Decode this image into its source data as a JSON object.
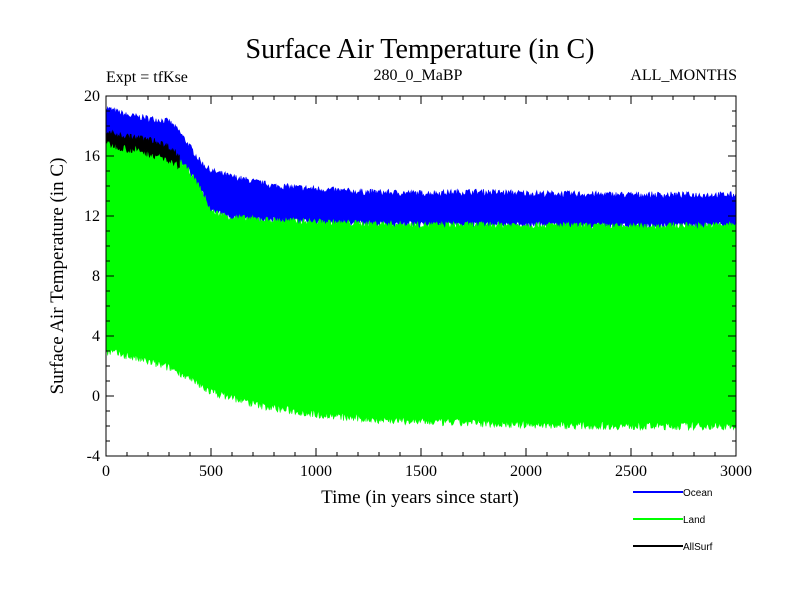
{
  "chart_data": {
    "type": "line",
    "title": "Surface Air Temperature (in C)",
    "subtitle_left": "Expt = tfKse",
    "subtitle_center": "280_0_MaBP",
    "subtitle_right": "ALL_MONTHS",
    "xlabel": "Time (in years since start)",
    "ylabel": "Surface Air Temperature (in C)",
    "xlim": [
      0,
      3000
    ],
    "ylim": [
      -4,
      20
    ],
    "x_ticks": [
      "0",
      "500",
      "1000",
      "1500",
      "2000",
      "2500",
      "3000"
    ],
    "x_tick_values": [
      0,
      500,
      1000,
      1500,
      2000,
      2500,
      3000
    ],
    "y_ticks": [
      "-4",
      "0",
      "4",
      "8",
      "12",
      "16",
      "20"
    ],
    "y_tick_values": [
      -4,
      0,
      4,
      8,
      12,
      16,
      20
    ],
    "series": [
      {
        "name": "Ocean",
        "color": "#0000ff",
        "x": [
          0,
          100,
          200,
          300,
          350,
          400,
          450,
          500,
          600,
          700,
          800,
          1000,
          1200,
          1500,
          1750,
          2000,
          2500,
          3000
        ],
        "upper": [
          19.2,
          18.7,
          18.5,
          18.3,
          17.6,
          16.6,
          15.6,
          15.0,
          14.6,
          14.3,
          14.0,
          13.8,
          13.6,
          13.5,
          13.6,
          13.5,
          13.4,
          13.4
        ],
        "lower": [
          17.2,
          17.0,
          16.7,
          16.2,
          15.7,
          14.9,
          13.8,
          12.3,
          11.9,
          11.8,
          11.7,
          11.6,
          11.5,
          11.4,
          11.4,
          11.4,
          11.3,
          11.4
        ]
      },
      {
        "name": "Land",
        "color": "#00ff00",
        "x": [
          0,
          100,
          200,
          300,
          350,
          400,
          450,
          500,
          600,
          700,
          800,
          1000,
          1200,
          1500,
          1750,
          2000,
          2500,
          3000
        ],
        "upper": [
          17.2,
          17.0,
          16.7,
          16.2,
          15.7,
          14.9,
          13.8,
          12.3,
          11.9,
          11.8,
          11.7,
          11.6,
          11.5,
          11.4,
          11.4,
          11.4,
          11.3,
          11.4
        ],
        "lower": [
          3.0,
          2.7,
          2.3,
          1.9,
          1.6,
          1.1,
          0.7,
          0.3,
          -0.1,
          -0.5,
          -0.8,
          -1.2,
          -1.5,
          -1.7,
          -1.8,
          -1.9,
          -2.0,
          -2.0
        ]
      },
      {
        "name": "AllSurf",
        "color": "#000000",
        "x": [
          0,
          50,
          100,
          150,
          200,
          250,
          300,
          350
        ],
        "upper": [
          17.6,
          17.4,
          17.3,
          17.2,
          17.1,
          16.9,
          16.6,
          16.0
        ],
        "lower": [
          16.9,
          16.7,
          16.5,
          16.4,
          16.2,
          16.0,
          15.7,
          15.3
        ]
      }
    ],
    "legend_position": "bottom-right"
  }
}
